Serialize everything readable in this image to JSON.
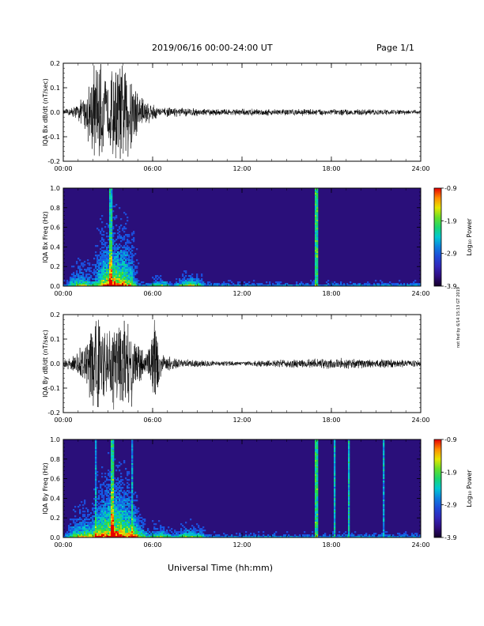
{
  "header": {
    "date_range": "2019/06/16  00:00-24:00 UT",
    "page": "Page 1/1"
  },
  "footer": {
    "xlabel": "Universal Time (hh:mm)"
  },
  "side_note": "not fed by 6/14 15:13 GT 2019",
  "colorbar": {
    "label": "Log₁₀ Power",
    "ticks": [
      "-0.9",
      "-1.9",
      "-2.9",
      "-3.9"
    ]
  },
  "chart_data": [
    {
      "type": "line",
      "ylabel": "IQA Bx dB/dt (nT/sec)",
      "xlim": [
        0,
        24
      ],
      "ylim": [
        -0.2,
        0.2
      ],
      "xticks": [
        "00:00",
        "06:00",
        "12:00",
        "18:00",
        "24:00"
      ],
      "yticks": [
        "0.2",
        "0.1",
        "0.0",
        "-0.1",
        "-0.2"
      ],
      "envelope": [
        {
          "x": 0,
          "amp": 0.01
        },
        {
          "x": 0.5,
          "amp": 0.02
        },
        {
          "x": 1.0,
          "amp": 0.04
        },
        {
          "x": 1.5,
          "amp": 0.08
        },
        {
          "x": 2.0,
          "amp": 0.22
        },
        {
          "x": 2.5,
          "amp": 0.22
        },
        {
          "x": 3.0,
          "amp": 0.12
        },
        {
          "x": 3.3,
          "amp": 0.22
        },
        {
          "x": 4.5,
          "amp": 0.22
        },
        {
          "x": 5.0,
          "amp": 0.1
        },
        {
          "x": 5.5,
          "amp": 0.06
        },
        {
          "x": 6.0,
          "amp": 0.04
        },
        {
          "x": 6.5,
          "amp": 0.02
        },
        {
          "x": 8.0,
          "amp": 0.02
        },
        {
          "x": 10.0,
          "amp": 0.014
        },
        {
          "x": 12.0,
          "amp": 0.015
        },
        {
          "x": 14.0,
          "amp": 0.015
        },
        {
          "x": 16.0,
          "amp": 0.015
        },
        {
          "x": 18.0,
          "amp": 0.014
        },
        {
          "x": 20.0,
          "amp": 0.013
        },
        {
          "x": 22.0,
          "amp": 0.012
        },
        {
          "x": 24.0,
          "amp": 0.01
        }
      ]
    },
    {
      "type": "heatmap",
      "ylabel": "IQA Bx Freq (Hz)",
      "xlim": [
        0,
        24
      ],
      "ylim": [
        0,
        1.0
      ],
      "xticks": [
        "00:00",
        "06:00",
        "12:00",
        "18:00",
        "24:00"
      ],
      "yticks": [
        "1.0",
        "0.8",
        "0.6",
        "0.4",
        "0.2",
        "0.0"
      ],
      "color_range": [
        -3.9,
        -0.9
      ],
      "bursts": [
        {
          "x": 1.2,
          "width": 1.0,
          "fmax": 0.25,
          "strength": 0.5
        },
        {
          "x": 3.5,
          "width": 1.6,
          "fmax": 0.55,
          "strength": 0.9
        },
        {
          "x": 6.5,
          "width": 0.8,
          "fmax": 0.12,
          "strength": 0.4
        },
        {
          "x": 8.5,
          "width": 1.0,
          "fmax": 0.15,
          "strength": 0.5
        }
      ],
      "vertical_lines": [
        {
          "x": 3.2,
          "strength": 0.6
        },
        {
          "x": 17.0,
          "strength": 0.8
        }
      ]
    },
    {
      "type": "line",
      "ylabel": "IQA By dB/dt (nT/sec)",
      "xlim": [
        0,
        24
      ],
      "ylim": [
        -0.2,
        0.2
      ],
      "xticks": [
        "00:00",
        "06:00",
        "12:00",
        "18:00",
        "24:00"
      ],
      "yticks": [
        "0.2",
        "0.1",
        "0.0",
        "-0.1",
        "-0.2"
      ],
      "envelope": [
        {
          "x": 0,
          "amp": 0.02
        },
        {
          "x": 0.5,
          "amp": 0.03
        },
        {
          "x": 1.0,
          "amp": 0.06
        },
        {
          "x": 1.5,
          "amp": 0.1
        },
        {
          "x": 2.0,
          "amp": 0.22
        },
        {
          "x": 2.5,
          "amp": 0.22
        },
        {
          "x": 3.0,
          "amp": 0.12
        },
        {
          "x": 3.3,
          "amp": 0.22
        },
        {
          "x": 4.5,
          "amp": 0.22
        },
        {
          "x": 5.0,
          "amp": 0.1
        },
        {
          "x": 5.5,
          "amp": 0.05
        },
        {
          "x": 6.2,
          "amp": 0.2
        },
        {
          "x": 6.6,
          "amp": 0.04
        },
        {
          "x": 8.0,
          "amp": 0.02
        },
        {
          "x": 10.0,
          "amp": 0.012
        },
        {
          "x": 12.0,
          "amp": 0.01
        },
        {
          "x": 14.0,
          "amp": 0.015
        },
        {
          "x": 16.0,
          "amp": 0.02
        },
        {
          "x": 18.0,
          "amp": 0.025
        },
        {
          "x": 20.0,
          "amp": 0.02
        },
        {
          "x": 22.0,
          "amp": 0.02
        },
        {
          "x": 24.0,
          "amp": 0.015
        }
      ]
    },
    {
      "type": "heatmap",
      "ylabel": "IQA By Freq (Hz)",
      "xlim": [
        0,
        24
      ],
      "ylim": [
        0,
        1.0
      ],
      "xticks": [
        "00:00",
        "06:00",
        "12:00",
        "18:00",
        "24:00"
      ],
      "yticks": [
        "1.0",
        "0.8",
        "0.6",
        "0.4",
        "0.2",
        "0.0"
      ],
      "color_range": [
        -3.9,
        -0.9
      ],
      "bursts": [
        {
          "x": 1.5,
          "width": 1.4,
          "fmax": 0.3,
          "strength": 0.6
        },
        {
          "x": 3.5,
          "width": 1.6,
          "fmax": 0.6,
          "strength": 0.95
        },
        {
          "x": 5.0,
          "width": 0.8,
          "fmax": 0.25,
          "strength": 0.5
        },
        {
          "x": 6.5,
          "width": 1.0,
          "fmax": 0.15,
          "strength": 0.4
        },
        {
          "x": 8.5,
          "width": 1.2,
          "fmax": 0.15,
          "strength": 0.45
        }
      ],
      "vertical_lines": [
        {
          "x": 2.2,
          "strength": 0.4
        },
        {
          "x": 3.3,
          "strength": 0.7
        },
        {
          "x": 4.6,
          "strength": 0.4
        },
        {
          "x": 17.0,
          "strength": 0.8
        },
        {
          "x": 18.2,
          "strength": 0.6
        },
        {
          "x": 19.2,
          "strength": 0.6
        },
        {
          "x": 21.5,
          "strength": 0.5
        }
      ]
    }
  ]
}
